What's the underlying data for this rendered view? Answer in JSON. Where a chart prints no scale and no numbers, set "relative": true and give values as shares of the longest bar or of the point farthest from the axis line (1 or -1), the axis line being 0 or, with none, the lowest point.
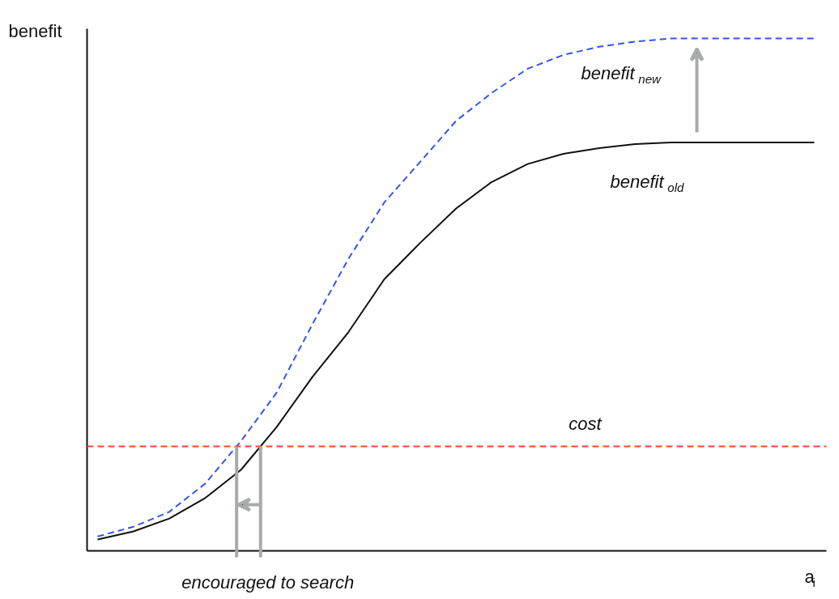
{
  "chart_data": {
    "type": "line",
    "relative": true,
    "xlabel": "a$_{i}$",
    "ylabel": "benefit",
    "categories": [
      null,
      null,
      null,
      null,
      null,
      null,
      null,
      null,
      null,
      null,
      null,
      null,
      null,
      null,
      null,
      null,
      null,
      null,
      null,
      null,
      null
    ],
    "series": [
      {
        "name": "benefit$_{new}$",
        "color": "#3355ee",
        "line_style": "dashed",
        "values": [
          0.028,
          0.047,
          0.076,
          0.131,
          0.214,
          0.309,
          0.443,
          0.57,
          0.68,
          0.759,
          0.839,
          0.894,
          0.941,
          0.968,
          0.984,
          0.994,
          1.0,
          1.0,
          1.0,
          1.0,
          1.0
        ]
      },
      {
        "name": "benefit$_{old}$",
        "color": "#111111",
        "line_style": "solid",
        "values": [
          0.022,
          0.038,
          0.063,
          0.103,
          0.158,
          0.242,
          0.34,
          0.427,
          0.53,
          0.601,
          0.668,
          0.72,
          0.755,
          0.775,
          0.786,
          0.794,
          0.797,
          0.797,
          0.797,
          0.797,
          0.797
        ]
      }
    ],
    "ref_lines": [
      {
        "axis": "y",
        "value": 0.204,
        "label": "cost",
        "color": "#ee4433",
        "line_style": "dashed"
      }
    ],
    "annotations": [
      "encouraged to search"
    ]
  }
}
